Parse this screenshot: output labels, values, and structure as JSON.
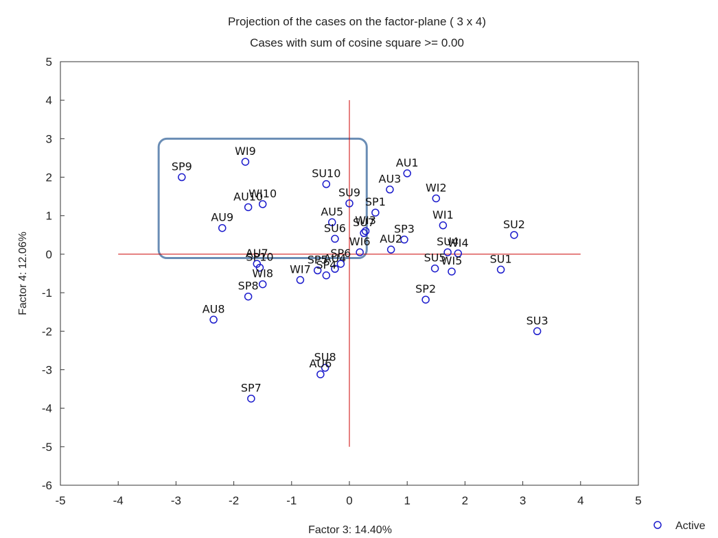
{
  "chart_data": {
    "type": "scatter",
    "title": "Projection of the cases on the factor-plane (  3 x   4)",
    "subtitle": "Cases with sum of cosine square >=  0.00",
    "xlabel": "Factor 3: 14.40%",
    "ylabel": "Factor 4: 12.06%",
    "xlim": [
      -5,
      5
    ],
    "ylim": [
      -6,
      5
    ],
    "xticks": [
      "-5",
      "-4",
      "-3",
      "-2",
      "-1",
      "0",
      "1",
      "2",
      "3",
      "4",
      "5"
    ],
    "yticks": [
      "-6",
      "-5",
      "-4",
      "-3",
      "-2",
      "-1",
      "0",
      "1",
      "2",
      "3",
      "4",
      "5"
    ],
    "grid": false,
    "legend": {
      "position": "bottom-right",
      "entries": [
        "Active"
      ]
    },
    "marker_color": "#1a1acc",
    "reference_line_color": "#cc0000",
    "highlight_box_color": "#6a8db5",
    "reference_lines": {
      "x": [
        -4,
        4
      ],
      "y": [
        -5,
        4
      ]
    },
    "highlight_region": {
      "x": [
        -3.3,
        0.3
      ],
      "y": [
        -0.1,
        3.0
      ]
    },
    "series": [
      {
        "name": "Active",
        "points": [
          {
            "label": "SP9",
            "x": -2.9,
            "y": 2.0
          },
          {
            "label": "WI9",
            "x": -1.8,
            "y": 2.4
          },
          {
            "label": "AU10",
            "x": -1.75,
            "y": 1.22
          },
          {
            "label": "WI10",
            "x": -1.5,
            "y": 1.3
          },
          {
            "label": "AU9",
            "x": -2.2,
            "y": 0.68
          },
          {
            "label": "SU10",
            "x": -0.4,
            "y": 1.82
          },
          {
            "label": "SU9",
            "x": 0.0,
            "y": 1.32
          },
          {
            "label": "AU5",
            "x": -0.3,
            "y": 0.83
          },
          {
            "label": "AU3",
            "x": 0.7,
            "y": 1.68
          },
          {
            "label": "AU1",
            "x": 1.0,
            "y": 2.1
          },
          {
            "label": "SP1",
            "x": 0.45,
            "y": 1.08
          },
          {
            "label": "WI2",
            "x": 1.5,
            "y": 1.45
          },
          {
            "label": "WI1",
            "x": 1.62,
            "y": 0.75
          },
          {
            "label": "SU6",
            "x": -0.25,
            "y": 0.4
          },
          {
            "label": "SU7",
            "x": 0.25,
            "y": 0.55
          },
          {
            "label": "WI3",
            "x": 0.28,
            "y": 0.6
          },
          {
            "label": "WI6",
            "x": 0.18,
            "y": 0.05
          },
          {
            "label": "SP3",
            "x": 0.95,
            "y": 0.38
          },
          {
            "label": "AU2",
            "x": 0.72,
            "y": 0.12
          },
          {
            "label": "SU2",
            "x": 2.85,
            "y": 0.5
          },
          {
            "label": "WI4",
            "x": 1.88,
            "y": 0.02
          },
          {
            "label": "SU4",
            "x": 1.7,
            "y": 0.05
          },
          {
            "label": "SU5",
            "x": 1.48,
            "y": -0.37
          },
          {
            "label": "WI5",
            "x": 1.77,
            "y": -0.45
          },
          {
            "label": "SU1",
            "x": 2.62,
            "y": -0.4
          },
          {
            "label": "AU7",
            "x": -1.6,
            "y": -0.25
          },
          {
            "label": "SP10",
            "x": -1.55,
            "y": -0.35
          },
          {
            "label": "SP5",
            "x": -0.55,
            "y": -0.42
          },
          {
            "label": "AU4",
            "x": -0.25,
            "y": -0.38
          },
          {
            "label": "WI7",
            "x": -0.85,
            "y": -0.67
          },
          {
            "label": "SP4",
            "x": -0.4,
            "y": -0.55
          },
          {
            "label": "SP6",
            "x": -0.15,
            "y": -0.25
          },
          {
            "label": "WI8",
            "x": -1.5,
            "y": -0.78
          },
          {
            "label": "SP8",
            "x": -1.75,
            "y": -1.1
          },
          {
            "label": "SP2",
            "x": 1.32,
            "y": -1.18
          },
          {
            "label": "AU8",
            "x": -2.35,
            "y": -1.7
          },
          {
            "label": "SU3",
            "x": 3.25,
            "y": -2.0
          },
          {
            "label": "SU8",
            "x": -0.42,
            "y": -2.95
          },
          {
            "label": "AU6",
            "x": -0.5,
            "y": -3.12
          },
          {
            "label": "SP7",
            "x": -1.7,
            "y": -3.75
          }
        ]
      }
    ]
  }
}
